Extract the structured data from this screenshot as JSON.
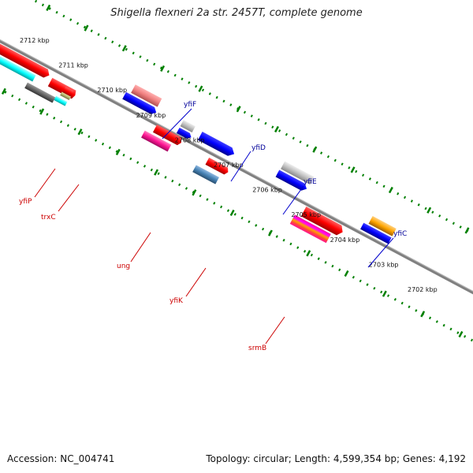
{
  "title": "Shigella flexneri 2a str. 2457T, complete genome",
  "footer": {
    "accession": "Accession: NC_004741",
    "summary": "Topology: circular; Length: 4,599,354 bp; Genes: 4,192"
  },
  "colors": {
    "backbone": "#808080",
    "ticks": "#008000",
    "plus_strand_labels": "#000099",
    "minus_strand_labels": "#cc0000"
  },
  "kbp_labels": [
    "2712 kbp",
    "2711 kbp",
    "2710 kbp",
    "2709 kbp",
    "2708 kbp",
    "2707 kbp",
    "2706 kbp",
    "2705 kbp",
    "2704 kbp",
    "2703 kbp",
    "2702 kbp"
  ],
  "gene_labels": {
    "plus": [
      "yfiF",
      "yfiD",
      "yfiE",
      "yfiC"
    ],
    "minus": [
      "yfiP",
      "trxC",
      "ung",
      "yfiK",
      "srmB"
    ]
  },
  "feature_colors": [
    "#ff0000",
    "#00ffff",
    "#666666",
    "#b5b56e",
    "#f08080",
    "#0000ff",
    "#c0c0c0",
    "#ff1493",
    "#4682b4",
    "#ffa500",
    "#ff00ff"
  ]
}
